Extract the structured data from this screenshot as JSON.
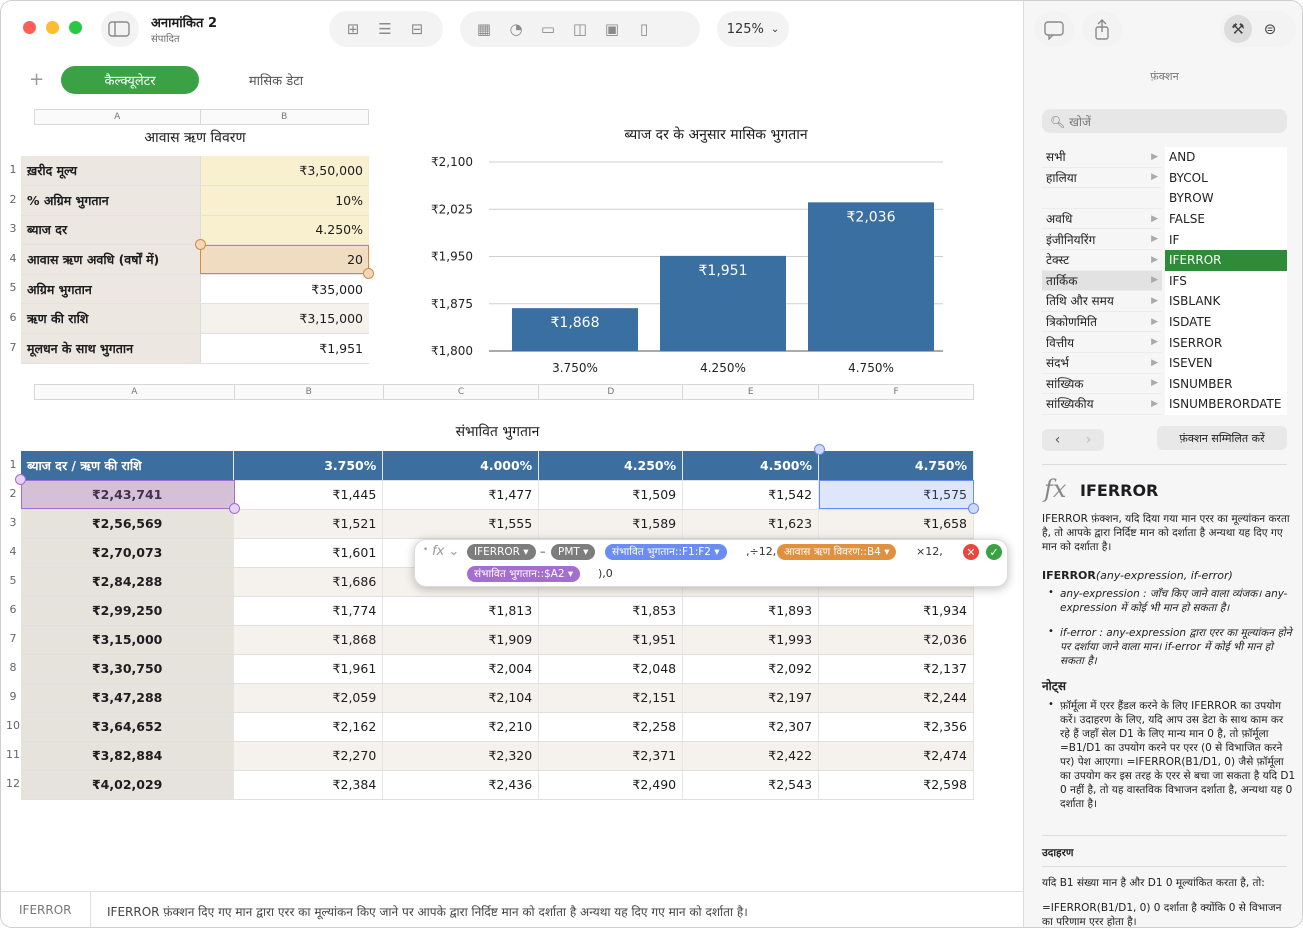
{
  "toolbar": {
    "doc_title": "अनामांकित 2",
    "doc_subtitle": "संपादित",
    "zoom": "125%"
  },
  "tabs": {
    "active": "कैल्क्यूलेटर",
    "other": "मासिक डेटा"
  },
  "loan_table": {
    "title": "आवास ऋण विवरण",
    "col_a": "A",
    "col_b": "B",
    "rows": [
      {
        "label": "ख़रीद मूल्य",
        "value": "₹3,50,000"
      },
      {
        "label": "% अग्रिम भुगतान",
        "value": "10%"
      },
      {
        "label": "ब्याज दर",
        "value": "4.250%"
      },
      {
        "label": "आवास ऋण अवधि (वर्षों में)",
        "value": "20"
      },
      {
        "label": "अग्रिम भुगतान",
        "value": "₹35,000"
      },
      {
        "label": "ऋण की राशि",
        "value": "₹3,15,000"
      },
      {
        "label": "मूलधन के साथ भुगतान",
        "value": "₹1,951"
      }
    ]
  },
  "chart_data": {
    "type": "bar",
    "title": "ब्याज दर के अनुसार मासिक भुगतान",
    "categories": [
      "3.750%",
      "4.250%",
      "4.750%"
    ],
    "values": [
      1868,
      1951,
      2036
    ],
    "data_labels": [
      "₹1,868",
      "₹1,951",
      "₹2,036"
    ],
    "yticks": [
      "₹2,100",
      "₹2,025",
      "₹1,950",
      "₹1,875",
      "₹1,800"
    ],
    "ylim": [
      1800,
      2100
    ],
    "color": "#3a6fa2",
    "grid": true
  },
  "payments": {
    "title": "संभावित भुगतान",
    "cols": [
      "A",
      "B",
      "C",
      "D",
      "E",
      "F"
    ],
    "header": [
      "ब्याज दर / ऋण की राशि",
      "3.750%",
      "4.000%",
      "4.250%",
      "4.500%",
      "4.750%"
    ],
    "rows": [
      [
        "₹2,43,741",
        "₹1,445",
        "₹1,477",
        "₹1,509",
        "₹1,542",
        "₹1,575"
      ],
      [
        "₹2,56,569",
        "₹1,521",
        "₹1,555",
        "₹1,589",
        "₹1,623",
        "₹1,658"
      ],
      [
        "₹2,70,073",
        "₹1,601",
        "",
        "",
        "",
        ""
      ],
      [
        "₹2,84,288",
        "₹1,686",
        "",
        "",
        "",
        ""
      ],
      [
        "₹2,99,250",
        "₹1,774",
        "₹1,813",
        "₹1,853",
        "₹1,893",
        "₹1,934"
      ],
      [
        "₹3,15,000",
        "₹1,868",
        "₹1,909",
        "₹1,951",
        "₹1,993",
        "₹2,036"
      ],
      [
        "₹3,30,750",
        "₹1,961",
        "₹2,004",
        "₹2,048",
        "₹2,092",
        "₹2,137"
      ],
      [
        "₹3,47,288",
        "₹2,059",
        "₹2,104",
        "₹2,151",
        "₹2,197",
        "₹2,244"
      ],
      [
        "₹3,64,652",
        "₹2,162",
        "₹2,210",
        "₹2,258",
        "₹2,307",
        "₹2,356"
      ],
      [
        "₹3,82,884",
        "₹2,270",
        "₹2,320",
        "₹2,371",
        "₹2,422",
        "₹2,474"
      ],
      [
        "₹4,02,029",
        "₹2,384",
        "₹2,436",
        "₹2,490",
        "₹2,543",
        "₹2,598"
      ]
    ]
  },
  "formula": {
    "fn1": "IFERROR ▾",
    "op1": "–",
    "fn2": "PMT ▾",
    "ref1": "संभावित भुगतान::F1:F2  ▾",
    "op2": ",÷12,",
    "ref2": "आवास ऋण विवरण::B4  ▾",
    "op3": "×12,",
    "ref3": "संभावित भुगतान::$A2  ▾",
    "op4": "),0"
  },
  "sidebar": {
    "section": "फ़ंक्शन",
    "search_placeholder": "खोजें",
    "categories": [
      "सभी",
      "हालिया",
      "",
      "अवधि",
      "इंजीनियरिंग",
      "टेक्स्ट",
      "तार्किक",
      "तिथि और समय",
      "त्रिकोणमिति",
      "वित्तीय",
      "संदर्भ",
      "सांख्यिक",
      "सांख्यिकीय"
    ],
    "functions": [
      "AND",
      "BYCOL",
      "BYROW",
      "FALSE",
      "IF",
      "IFERROR",
      "IFS",
      "ISBLANK",
      "ISDATE",
      "ISERROR",
      "ISEVEN",
      "ISNUMBER",
      "ISNUMBERORDATE"
    ],
    "insert_button": "फ़ंक्शन सम्मिलित करें",
    "fn_name": "IFERROR",
    "fn_desc": "IFERROR फ़ंक्शन, यदि दिया गया मान एरर का मूल्यांकन करता है, तो आपके द्वारा निर्दिष्ट मान को दर्शाता है अन्यथा यह दिए गए मान को दर्शाता है।",
    "syntax_name": "IFERROR",
    "syntax_args": "(any-expression, if-error)",
    "arg1": "any-expression : जाँच किए जाने वाला व्यंजक। any-expression में कोई भी मान हो सकता है।",
    "arg2": "if-error : any-expression द्वारा एरर का मूल्यांकन होने पर दर्शाया जाने वाला मान। if-error में कोई भी मान हो सकता है।",
    "notes_title": "नोट्स",
    "notes": "फ़ॉर्मूला में एरर हैंडल करने के लिए IFERROR का उपयोग करें। उदाहरण के लिए, यदि आप उस डेटा के साथ काम कर रहे हैं जहाँ सेल D1 के लिए मान्य मान 0 है, तो फ़ॉर्मूला =B1/D1 का उपयोग करने पर एरर (0 से विभाजित करने पर) पेश आएगा। =IFERROR(B1/D1, 0) जैसे फ़ॉर्मूला का उपयोग कर इस तरह के एरर से बचा जा सकता है यदि D1 0 नहीं है, तो यह वास्तविक विभाजन दर्शाता है, अन्यथा यह 0 दर्शाता है।",
    "example_title": "उदाहरण",
    "example1": "यदि B1 संख्या मान है और D1 0 मूल्यांकित करता है, तो:",
    "example2": "=IFERROR(B1/D1, 0) 0 दर्शाता है क्योंकि 0 से विभाजन का परिणाम एरर होता है।"
  },
  "status": {
    "fn": "IFERROR",
    "desc": "IFERROR फ़ंक्शन दिए गए मान द्वारा एरर का मूल्यांकन किए जाने पर आपके द्वारा निर्दिष्ट मान को दर्शाता है अन्यथा यह दिए गए मान को दर्शाता है।"
  }
}
